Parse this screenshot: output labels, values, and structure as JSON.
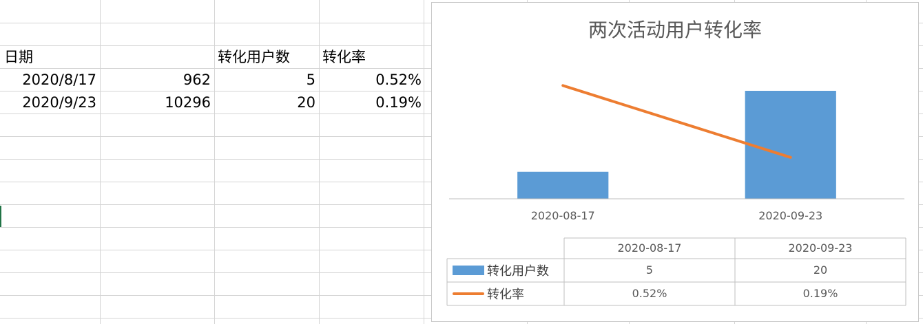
{
  "sheet": {
    "header_row": [
      "日期",
      "",
      "转化用户数",
      "转化率"
    ],
    "rows": [
      [
        "2020/8/17",
        "962",
        "5",
        "0.52%"
      ],
      [
        "2020/9/23",
        "10296",
        "20",
        "0.19%"
      ]
    ]
  },
  "chart_data": {
    "type": "bar",
    "title": "两次活动用户转化率",
    "categories": [
      "2020-08-17",
      "2020-09-23"
    ],
    "series": [
      {
        "name": "转化用户数",
        "type": "bar",
        "values": [
          5,
          20
        ],
        "labels": [
          "5",
          "20"
        ],
        "color": "#5b9bd5"
      },
      {
        "name": "转化率",
        "type": "line",
        "values": [
          0.0052,
          0.0019
        ],
        "labels": [
          "0.52%",
          "0.19%"
        ],
        "color": "#ed7d31"
      }
    ],
    "data_table": true,
    "grid": false
  }
}
